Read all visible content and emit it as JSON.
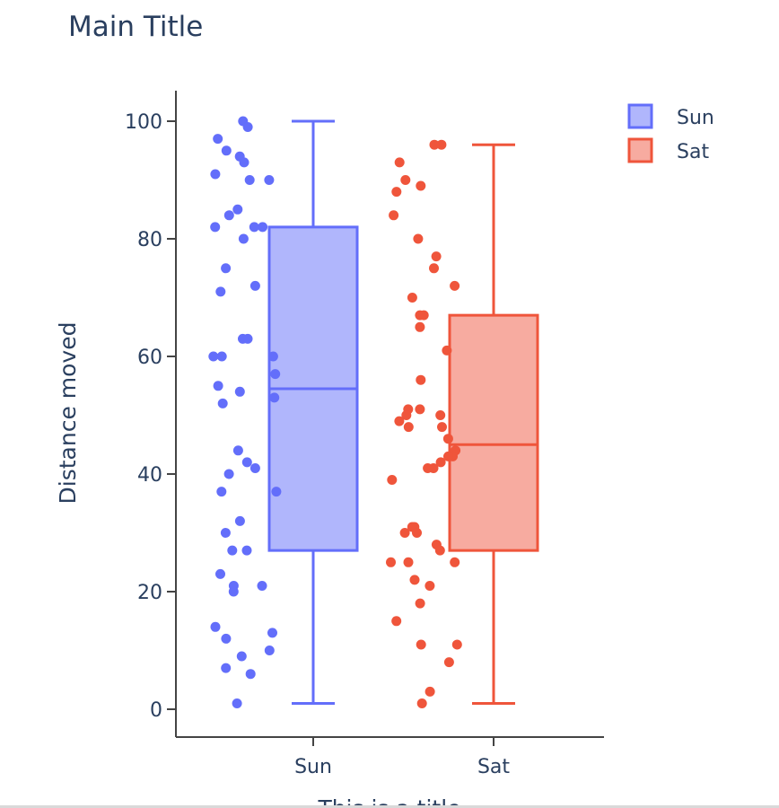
{
  "chart_data": {
    "type": "box",
    "title": "Main Title",
    "ylabel": "Distance moved",
    "xlabel": "This is a title",
    "ylim": [
      -5,
      105
    ],
    "yticks": [
      0,
      20,
      40,
      60,
      80,
      100
    ],
    "categories": [
      "Sun",
      "Sat"
    ],
    "legend_position": "top-right",
    "series": [
      {
        "name": "Sun",
        "color": "#636efa",
        "fill": "#b0b6fc",
        "box": {
          "min": 1,
          "q1": 27,
          "median": 54.5,
          "q3": 82,
          "max": 100
        },
        "points": [
          100,
          99,
          97,
          95,
          94,
          93,
          91,
          90,
          90,
          85,
          84,
          82,
          82,
          82,
          80,
          75,
          72,
          71,
          63,
          63,
          60,
          60,
          60,
          57,
          55,
          54,
          53,
          52,
          44,
          42,
          41,
          40,
          37,
          37,
          32,
          30,
          27,
          27,
          23,
          21,
          21,
          20,
          14,
          13,
          12,
          10,
          9,
          7,
          6,
          1
        ]
      },
      {
        "name": "Sat",
        "color": "#ef553b",
        "fill": "#f7aba0",
        "box": {
          "min": 1,
          "q1": 27,
          "median": 45,
          "q3": 67,
          "max": 96
        },
        "points": [
          96,
          96,
          93,
          90,
          89,
          88,
          84,
          80,
          77,
          75,
          72,
          70,
          67,
          67,
          65,
          61,
          56,
          51,
          51,
          50,
          50,
          49,
          48,
          48,
          46,
          44,
          43,
          43,
          42,
          41,
          41,
          39,
          31,
          31,
          30,
          30,
          28,
          27,
          25,
          25,
          25,
          22,
          21,
          18,
          15,
          11,
          11,
          8,
          3,
          1
        ]
      }
    ]
  }
}
